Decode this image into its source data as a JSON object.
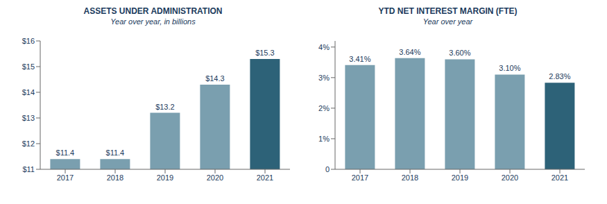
{
  "chart_data": [
    {
      "type": "bar",
      "title": "ASSETS UNDER ADMINISTRATION",
      "subtitle": "Year over year, in billions",
      "categories": [
        "2017",
        "2018",
        "2019",
        "2020",
        "2021"
      ],
      "values": [
        11.4,
        11.4,
        13.2,
        14.3,
        15.3
      ],
      "value_labels": [
        "$11.4",
        "$11.4",
        "$13.2",
        "$14.3",
        "$15.3"
      ],
      "data_labels": true,
      "colors": [
        "#7a9faf",
        "#7a9faf",
        "#7a9faf",
        "#7a9faf",
        "#2d6278"
      ],
      "ylim": [
        11,
        16
      ],
      "yticks": [
        {
          "value": 11,
          "label": "$11"
        },
        {
          "value": 12,
          "label": "$12"
        },
        {
          "value": 13,
          "label": "$13"
        },
        {
          "value": 14,
          "label": "$14"
        },
        {
          "value": 15,
          "label": "$15"
        },
        {
          "value": 16,
          "label": "$16"
        }
      ],
      "grid": false
    },
    {
      "type": "bar",
      "title": "YTD NET INTEREST MARGIN (FTE)",
      "subtitle": "Year over year",
      "categories": [
        "2017",
        "2018",
        "2019",
        "2020",
        "2021"
      ],
      "values": [
        3.41,
        3.64,
        3.6,
        3.1,
        2.83
      ],
      "value_labels": [
        "3.41%",
        "3.64%",
        "3.60%",
        "3.10%",
        "2.83%"
      ],
      "data_labels": true,
      "colors": [
        "#7a9faf",
        "#7a9faf",
        "#7a9faf",
        "#7a9faf",
        "#2d6278"
      ],
      "ylim": [
        0,
        4.2
      ],
      "yticks": [
        0,
        {
          "value": 1,
          "label": "1%"
        },
        {
          "value": 2,
          "label": "2%"
        },
        {
          "value": 3,
          "label": "3%"
        },
        {
          "value": 4,
          "label": "4%"
        }
      ],
      "grid": false
    }
  ]
}
